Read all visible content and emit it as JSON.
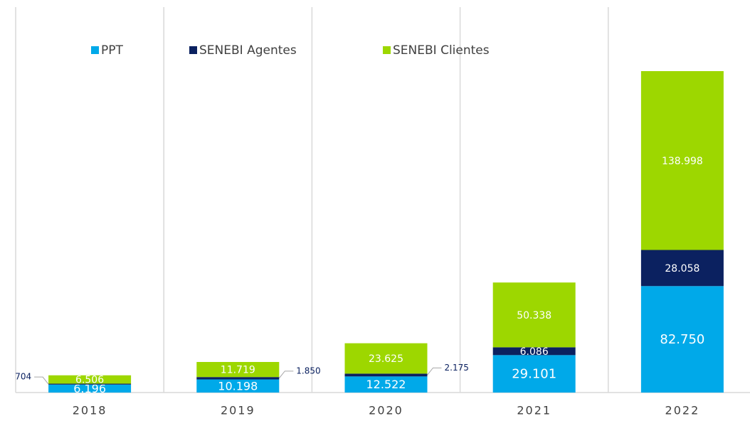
{
  "chart_data": {
    "type": "stacked_bar",
    "categories": [
      "2018",
      "2019",
      "2020",
      "2021",
      "2022"
    ],
    "series": [
      {
        "name": "PPT",
        "color": "#00a9e9",
        "values": [
          6196,
          10198,
          12522,
          29101,
          82750
        ],
        "value_labels": [
          "6.196",
          "10.198",
          "12.522",
          "29.101",
          "82.750"
        ]
      },
      {
        "name": "SENEBI Agentes",
        "color": "#0b2160",
        "values": [
          704,
          1850,
          2175,
          6086,
          28058
        ],
        "value_labels": [
          "704",
          "1.850",
          "2.175",
          "6.086",
          "28.058"
        ]
      },
      {
        "name": "SENEBI Clientes",
        "color": "#9dd700",
        "values": [
          6506,
          11719,
          23625,
          50338,
          138998
        ],
        "value_labels": [
          "6.506",
          "11.719",
          "23.625",
          "50.338",
          "138.998"
        ]
      }
    ],
    "legend": "top"
  }
}
